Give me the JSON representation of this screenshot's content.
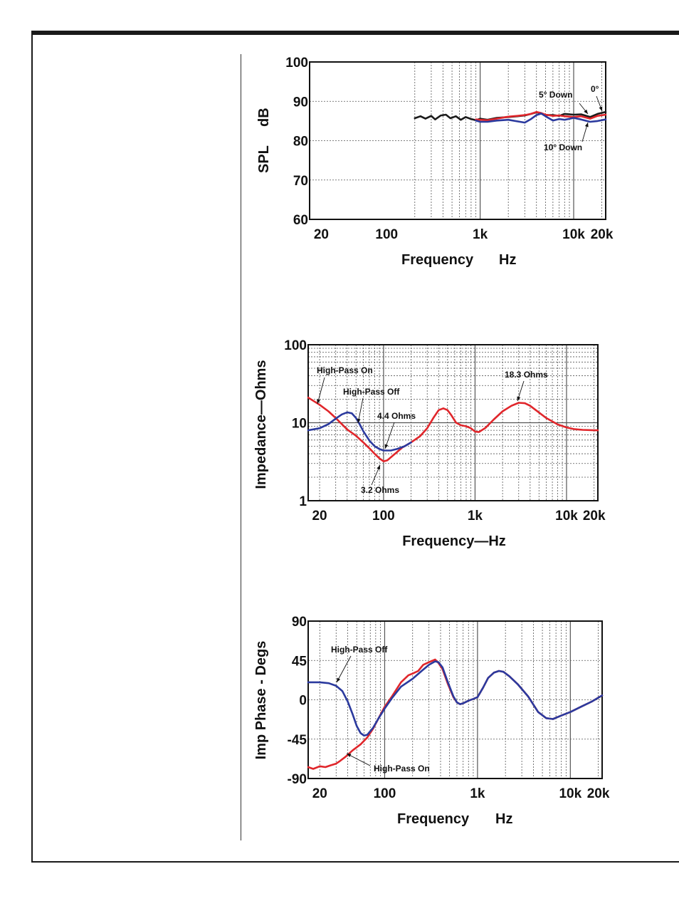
{
  "colors": {
    "red": "#e0262b",
    "blue": "#2b3a9e",
    "black": "#1b1b1b",
    "grid": "#555555"
  },
  "chart_data": [
    {
      "type": "line",
      "scale": "log-x",
      "ylabel_parts": [
        "SPL",
        "dB"
      ],
      "xlabel_parts": [
        "Frequency",
        "Hz"
      ],
      "ylim": [
        60,
        100
      ],
      "xlim": [
        15,
        22000
      ],
      "yticks": [
        "100",
        "90",
        "80",
        "70",
        "60"
      ],
      "ytick_values": [
        100,
        90,
        80,
        70,
        60
      ],
      "xticks": [
        "20",
        "100",
        "1k",
        "10k",
        "20k"
      ],
      "xtick_values": [
        20,
        100,
        1000,
        10000,
        20000
      ],
      "grid": true,
      "series": [
        {
          "name": "0°",
          "color": "black",
          "points": [
            [
              200,
              85.7
            ],
            [
              230,
              86.2
            ],
            [
              260,
              85.6
            ],
            [
              300,
              86.3
            ],
            [
              330,
              85.4
            ],
            [
              380,
              86.4
            ],
            [
              430,
              86.6
            ],
            [
              480,
              85.7
            ],
            [
              550,
              86.2
            ],
            [
              620,
              85.3
            ],
            [
              700,
              86.0
            ],
            [
              800,
              85.5
            ],
            [
              900,
              85.2
            ],
            [
              1000,
              85.6
            ],
            [
              1200,
              85.3
            ],
            [
              1500,
              85.8
            ],
            [
              2000,
              86.0
            ],
            [
              2500,
              86.2
            ],
            [
              3000,
              86.4
            ],
            [
              3500,
              86.8
            ],
            [
              4000,
              87.2
            ],
            [
              4500,
              87.0
            ],
            [
              5000,
              86.5
            ],
            [
              6000,
              86.5
            ],
            [
              7000,
              86.3
            ],
            [
              8000,
              86.8
            ],
            [
              10000,
              86.6
            ],
            [
              12000,
              86.7
            ],
            [
              15000,
              86.0
            ],
            [
              18000,
              86.8
            ],
            [
              22000,
              87.3
            ]
          ]
        },
        {
          "name": "5° Down",
          "color": "red",
          "points": [
            [
              900,
              85.4
            ],
            [
              1000,
              85.3
            ],
            [
              1200,
              85.2
            ],
            [
              1500,
              85.6
            ],
            [
              2000,
              86.1
            ],
            [
              2500,
              86.3
            ],
            [
              3000,
              86.5
            ],
            [
              3500,
              86.8
            ],
            [
              4000,
              87.3
            ],
            [
              4500,
              87.0
            ],
            [
              5000,
              86.6
            ],
            [
              6000,
              86.3
            ],
            [
              7000,
              86.4
            ],
            [
              8000,
              86.2
            ],
            [
              10000,
              86.0
            ],
            [
              12000,
              86.2
            ],
            [
              15000,
              85.6
            ],
            [
              18000,
              86.3
            ],
            [
              22000,
              86.6
            ]
          ]
        },
        {
          "name": "10° Down",
          "color": "blue",
          "points": [
            [
              900,
              85.1
            ],
            [
              1000,
              84.8
            ],
            [
              1200,
              84.8
            ],
            [
              1500,
              85.1
            ],
            [
              2000,
              85.3
            ],
            [
              2500,
              84.9
            ],
            [
              3000,
              84.6
            ],
            [
              3500,
              85.5
            ],
            [
              4000,
              86.5
            ],
            [
              4500,
              86.9
            ],
            [
              5000,
              86.2
            ],
            [
              6000,
              85.1
            ],
            [
              7000,
              85.5
            ],
            [
              8000,
              85.3
            ],
            [
              10000,
              85.8
            ],
            [
              12000,
              85.4
            ],
            [
              15000,
              84.8
            ],
            [
              18000,
              85.0
            ],
            [
              22000,
              85.4
            ]
          ]
        }
      ],
      "annotations": [
        {
          "text": "5° Down",
          "series": "5° Down",
          "at_x": 16000
        },
        {
          "text": "0°",
          "series": "0°",
          "at_x": 20000
        },
        {
          "text": "10° Down",
          "series": "10° Down",
          "at_x": 13000
        }
      ]
    },
    {
      "type": "line",
      "scale": "log-x log-y",
      "ylabel": "Impedance—Ohms",
      "xlabel": "Frequency—Hz",
      "ylim": [
        1,
        100
      ],
      "xlim": [
        15,
        22000
      ],
      "yticks": [
        "100",
        "10",
        "1"
      ],
      "ytick_values": [
        100,
        10,
        1
      ],
      "xticks": [
        "20",
        "100",
        "1k",
        "10k",
        "20k"
      ],
      "xtick_values": [
        20,
        100,
        1000,
        10000,
        20000
      ],
      "grid": true,
      "series": [
        {
          "name": "High-Pass On",
          "color": "red",
          "points": [
            [
              15,
              21
            ],
            [
              20,
              17
            ],
            [
              25,
              14
            ],
            [
              30,
              11.5
            ],
            [
              40,
              8.2
            ],
            [
              50,
              6.8
            ],
            [
              60,
              5.6
            ],
            [
              70,
              4.7
            ],
            [
              80,
              4.0
            ],
            [
              90,
              3.5
            ],
            [
              100,
              3.2
            ],
            [
              110,
              3.3
            ],
            [
              130,
              3.9
            ],
            [
              160,
              4.8
            ],
            [
              200,
              5.6
            ],
            [
              250,
              6.7
            ],
            [
              300,
              8.5
            ],
            [
              350,
              11.5
            ],
            [
              400,
              14.5
            ],
            [
              450,
              15.3
            ],
            [
              500,
              14.5
            ],
            [
              550,
              12.5
            ],
            [
              620,
              10.0
            ],
            [
              700,
              9.3
            ],
            [
              800,
              9.0
            ],
            [
              900,
              8.5
            ],
            [
              1000,
              7.7
            ],
            [
              1100,
              7.6
            ],
            [
              1300,
              8.6
            ],
            [
              1600,
              11.0
            ],
            [
              2000,
              14.0
            ],
            [
              2500,
              16.5
            ],
            [
              3000,
              18.0
            ],
            [
              3500,
              17.8
            ],
            [
              4000,
              16.5
            ],
            [
              5000,
              13.5
            ],
            [
              6000,
              11.5
            ],
            [
              8000,
              9.5
            ],
            [
              10000,
              8.7
            ],
            [
              12000,
              8.3
            ],
            [
              15000,
              8.1
            ],
            [
              20000,
              8.0
            ],
            [
              22000,
              8.0
            ]
          ]
        },
        {
          "name": "High-Pass Off",
          "color": "blue",
          "points": [
            [
              15,
              8.0
            ],
            [
              20,
              8.5
            ],
            [
              25,
              9.6
            ],
            [
              30,
              11.3
            ],
            [
              35,
              12.8
            ],
            [
              40,
              13.6
            ],
            [
              45,
              13.2
            ],
            [
              50,
              11.5
            ],
            [
              55,
              9.5
            ],
            [
              60,
              7.8
            ],
            [
              70,
              5.9
            ],
            [
              80,
              5.0
            ],
            [
              90,
              4.6
            ],
            [
              100,
              4.4
            ],
            [
              120,
              4.4
            ],
            [
              140,
              4.6
            ],
            [
              170,
              5.0
            ],
            [
              200,
              5.6
            ]
          ]
        }
      ],
      "annotations": [
        {
          "text": "High-Pass On",
          "series": "High-Pass On",
          "at_x": 17
        },
        {
          "text": "High-Pass Off",
          "series": "High-Pass Off",
          "at_x": 55
        },
        {
          "text": "4.4 Ohms",
          "series": "High-Pass Off",
          "at_x": 100
        },
        {
          "text": "18.3 Ohms",
          "series": "High-Pass On",
          "at_x": 3000
        },
        {
          "text": "3.2 Ohms",
          "series": "High-Pass On",
          "at_x": 100
        }
      ]
    },
    {
      "type": "line",
      "scale": "log-x",
      "ylabel": "Imp Phase - Degs",
      "xlabel_parts": [
        "Frequency",
        "Hz"
      ],
      "ylim": [
        -90,
        90
      ],
      "xlim": [
        15,
        22000
      ],
      "yticks": [
        "90",
        "45",
        "0",
        "-45",
        "-90"
      ],
      "ytick_values": [
        90,
        45,
        0,
        -45,
        -90
      ],
      "xticks": [
        "20",
        "100",
        "1k",
        "10k",
        "20k"
      ],
      "xtick_values": [
        20,
        100,
        1000,
        10000,
        20000
      ],
      "grid": true,
      "series": [
        {
          "name": "High-Pass On",
          "color": "red",
          "points": [
            [
              15,
              -77
            ],
            [
              17,
              -79
            ],
            [
              20,
              -76
            ],
            [
              23,
              -77
            ],
            [
              26,
              -75
            ],
            [
              30,
              -73
            ],
            [
              33,
              -70
            ],
            [
              38,
              -65
            ],
            [
              45,
              -58
            ],
            [
              55,
              -51
            ],
            [
              65,
              -43
            ],
            [
              75,
              -33
            ],
            [
              85,
              -22
            ],
            [
              100,
              -8
            ],
            [
              120,
              4
            ],
            [
              150,
              20
            ],
            [
              180,
              28
            ],
            [
              200,
              30
            ],
            [
              230,
              33
            ],
            [
              260,
              40
            ],
            [
              300,
              43
            ],
            [
              350,
              46
            ],
            [
              380,
              42
            ],
            [
              420,
              35
            ],
            [
              480,
              18
            ],
            [
              550,
              3
            ],
            [
              600,
              -3
            ],
            [
              650,
              -5
            ],
            [
              700,
              -4
            ],
            [
              800,
              -1
            ],
            [
              900,
              1
            ],
            [
              1000,
              3
            ],
            [
              1150,
              14
            ],
            [
              1300,
              25
            ],
            [
              1500,
              31
            ],
            [
              1700,
              33
            ],
            [
              1900,
              32
            ],
            [
              2200,
              27
            ],
            [
              2700,
              18
            ],
            [
              3500,
              4
            ],
            [
              4500,
              -14
            ],
            [
              5500,
              -21
            ],
            [
              6500,
              -22
            ],
            [
              8000,
              -18
            ],
            [
              10000,
              -14
            ],
            [
              13000,
              -8
            ],
            [
              17000,
              -2
            ],
            [
              22000,
              5
            ]
          ]
        },
        {
          "name": "High-Pass Off",
          "color": "blue",
          "points": [
            [
              15,
              20
            ],
            [
              20,
              20
            ],
            [
              25,
              19
            ],
            [
              30,
              16
            ],
            [
              35,
              10
            ],
            [
              40,
              -2
            ],
            [
              45,
              -16
            ],
            [
              50,
              -30
            ],
            [
              55,
              -38
            ],
            [
              60,
              -41
            ],
            [
              65,
              -40
            ],
            [
              75,
              -32
            ],
            [
              85,
              -22
            ],
            [
              100,
              -10
            ],
            [
              120,
              2
            ],
            [
              150,
              15
            ],
            [
              200,
              24
            ],
            [
              250,
              33
            ],
            [
              300,
              40
            ],
            [
              350,
              44
            ],
            [
              380,
              43
            ],
            [
              420,
              37
            ],
            [
              480,
              20
            ],
            [
              550,
              4
            ],
            [
              600,
              -3
            ],
            [
              650,
              -5
            ],
            [
              700,
              -4
            ],
            [
              800,
              -1
            ],
            [
              900,
              1
            ],
            [
              1000,
              3
            ],
            [
              1150,
              14
            ],
            [
              1300,
              25
            ],
            [
              1500,
              31
            ],
            [
              1700,
              33
            ],
            [
              1900,
              32
            ],
            [
              2200,
              27
            ],
            [
              2700,
              18
            ],
            [
              3500,
              4
            ],
            [
              4500,
              -14
            ],
            [
              5500,
              -21
            ],
            [
              6500,
              -22
            ],
            [
              8000,
              -18
            ],
            [
              10000,
              -14
            ],
            [
              13000,
              -8
            ],
            [
              17000,
              -2
            ],
            [
              22000,
              5
            ]
          ]
        }
      ],
      "annotations": [
        {
          "text": "High-Pass Off",
          "series": "High-Pass Off",
          "at_x": 29
        },
        {
          "text": "High-Pass On",
          "series": "High-Pass On",
          "at_x": 33
        }
      ]
    }
  ]
}
